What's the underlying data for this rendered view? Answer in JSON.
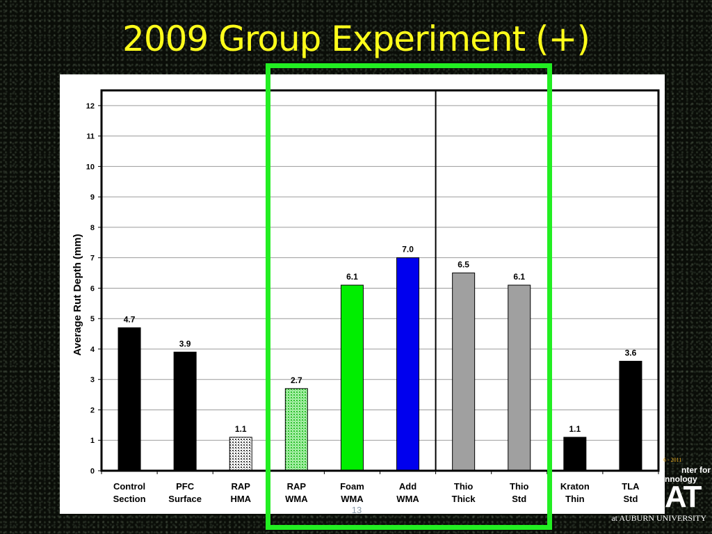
{
  "slide": {
    "title": "2009 Group Experiment (+)",
    "page_number": "13"
  },
  "logo": {
    "years": "6 - 2011",
    "line1": "nter for",
    "line2": "nnology",
    "mark": "AT",
    "university": "at AUBURN UNIVERSITY"
  },
  "colors": {
    "highlight": "#22ee22",
    "title": "#ffff1a"
  },
  "chart_data": {
    "type": "bar",
    "title": "",
    "xlabel": "",
    "ylabel": "Average Rut Depth (mm)",
    "ylim": [
      0,
      12.5
    ],
    "yticks": [
      0,
      1,
      2,
      3,
      4,
      5,
      6,
      7,
      8,
      9,
      10,
      11,
      12
    ],
    "grid": true,
    "categories": [
      [
        "Control",
        "Section"
      ],
      [
        "PFC",
        "Surface"
      ],
      [
        "RAP",
        "HMA"
      ],
      [
        "RAP",
        "WMA"
      ],
      [
        "Foam",
        "WMA"
      ],
      [
        "Add",
        "WMA"
      ],
      [
        "Thio",
        "Thick"
      ],
      [
        "Thio",
        "Std"
      ],
      [
        "Kraton",
        "Thin"
      ],
      [
        "TLA",
        "Std"
      ]
    ],
    "values": [
      4.7,
      3.9,
      1.1,
      2.7,
      6.1,
      7.0,
      6.5,
      6.1,
      1.1,
      3.6
    ],
    "data_labels": [
      "4.7",
      "3.9",
      "1.1",
      "2.7",
      "6.1",
      "7.0",
      "6.5",
      "6.1",
      "1.1",
      "3.6"
    ],
    "bar_colors": [
      "#000000",
      "#000000",
      "dotted-gray",
      "dotted-lightgreen",
      "#00ee00",
      "#0000ee",
      "#a0a0a0",
      "#a0a0a0",
      "#000000",
      "#000000"
    ],
    "group_divider_after_index": 5
  }
}
